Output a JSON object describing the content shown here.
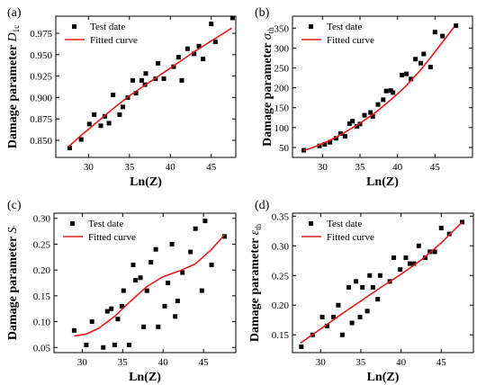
{
  "chart_data": [
    {
      "type": "scatter",
      "panel_label": "(a)",
      "xlabel": "Ln(Z)",
      "ylabel": "Damage parameter ",
      "ylabel_symbol": "D",
      "ylabel_subscript": "1c",
      "xlim": [
        26,
        48
      ],
      "ylim": [
        0.83,
        0.995
      ],
      "xticks": [
        30,
        35,
        40,
        45
      ],
      "yticks": [
        0.85,
        0.875,
        0.9,
        0.925,
        0.95,
        0.975
      ],
      "ytick_decimals": 3,
      "legend": [
        "Test date",
        "Fitted curve"
      ],
      "legend_position": "top-left",
      "series": [
        {
          "name": "Test date",
          "x": [
            27.7,
            29.1,
            30.1,
            30.7,
            31.5,
            32.0,
            32.5,
            33.0,
            33.8,
            34.2,
            34.8,
            35.4,
            35.8,
            36.5,
            36.9,
            37.0,
            38.2,
            38.5,
            39.2,
            40.4,
            41.0,
            41.4,
            42.1,
            42.9,
            43.5,
            44.0,
            45.0,
            45.5,
            47.6
          ],
          "y": [
            0.841,
            0.851,
            0.869,
            0.88,
            0.867,
            0.878,
            0.87,
            0.903,
            0.88,
            0.889,
            0.9,
            0.92,
            0.905,
            0.92,
            0.915,
            0.928,
            0.922,
            0.94,
            0.922,
            0.936,
            0.947,
            0.92,
            0.957,
            0.951,
            0.96,
            0.945,
            0.986,
            0.965,
            0.993
          ]
        },
        {
          "name": "Fitted curve",
          "x": [
            27.5,
            29,
            31,
            33,
            35,
            37,
            39,
            41,
            43,
            45,
            47.5
          ],
          "y": [
            0.842,
            0.855,
            0.871,
            0.887,
            0.902,
            0.915,
            0.928,
            0.941,
            0.954,
            0.966,
            0.981
          ]
        }
      ]
    },
    {
      "type": "scatter",
      "panel_label": "(b)",
      "xlabel": "Ln(Z)",
      "ylabel": "Damage parameter ",
      "ylabel_symbol": "σ",
      "ylabel_subscript": "th",
      "xlim": [
        26,
        50
      ],
      "ylim": [
        25,
        380
      ],
      "xticks": [
        30,
        35,
        40,
        45
      ],
      "yticks": [
        50,
        100,
        150,
        200,
        250,
        300,
        350
      ],
      "ytick_decimals": 0,
      "legend": [
        "Test date",
        "Fitted curve"
      ],
      "legend_position": "top-left",
      "series": [
        {
          "name": "Test date",
          "x": [
            27.5,
            29.6,
            30.3,
            31.0,
            31.8,
            32.4,
            33.0,
            33.6,
            34.0,
            34.6,
            35.0,
            35.6,
            36.4,
            36.7,
            37.4,
            38.1,
            38.5,
            39.1,
            39.4,
            40.6,
            41.2,
            41.8,
            42.4,
            43.1,
            43.5,
            44.4,
            45.0,
            46.0,
            47.8
          ],
          "y": [
            43,
            54,
            58,
            63,
            73,
            85,
            78,
            110,
            116,
            103,
            109,
            131,
            138,
            128,
            158,
            170,
            192,
            193,
            188,
            232,
            235,
            222,
            272,
            262,
            285,
            252,
            340,
            330,
            356
          ]
        },
        {
          "name": "Fitted curve",
          "x": [
            27.5,
            29,
            31,
            33,
            35,
            37,
            39,
            41,
            43,
            45,
            47.5
          ],
          "y": [
            42,
            52,
            68,
            88,
            111,
            137,
            168,
            202,
            243,
            290,
            352
          ]
        }
      ]
    },
    {
      "type": "scatter",
      "panel_label": "(c)",
      "xlabel": "Ln(Z)",
      "ylabel": "Damage parameter ",
      "ylabel_symbol": "S",
      "ylabel_subscript": "'",
      "xlim": [
        26.5,
        49
      ],
      "ylim": [
        0.04,
        0.31
      ],
      "xticks": [
        30,
        35,
        40,
        45
      ],
      "yticks": [
        0.05,
        0.1,
        0.15,
        0.2,
        0.25,
        0.3
      ],
      "ytick_decimals": 2,
      "legend": [
        "Test date",
        "Fitted curve"
      ],
      "legend_position": "top-left",
      "series": [
        {
          "name": "Test date",
          "x": [
            29.0,
            30.5,
            31.2,
            32.6,
            33.1,
            33.6,
            34.0,
            34.4,
            34.9,
            35.1,
            35.8,
            36.3,
            36.6,
            37.2,
            37.6,
            38.0,
            38.5,
            39.1,
            39.4,
            40.2,
            40.6,
            41.1,
            41.5,
            41.8,
            42.4,
            43.4,
            44.0,
            44.8,
            45.2,
            46.0,
            47.6
          ],
          "y": [
            0.083,
            0.055,
            0.1,
            0.05,
            0.12,
            0.125,
            0.055,
            0.105,
            0.13,
            0.16,
            0.055,
            0.21,
            0.18,
            0.185,
            0.09,
            0.16,
            0.215,
            0.24,
            0.09,
            0.13,
            0.175,
            0.25,
            0.11,
            0.14,
            0.195,
            0.235,
            0.28,
            0.16,
            0.295,
            0.21,
            0.265
          ]
        },
        {
          "name": "Fitted curve",
          "x": [
            29,
            30.5,
            32,
            34,
            36,
            38,
            40,
            42,
            44,
            46,
            47.6
          ],
          "y": [
            0.072,
            0.076,
            0.087,
            0.11,
            0.14,
            0.168,
            0.187,
            0.198,
            0.212,
            0.24,
            0.268
          ]
        }
      ]
    },
    {
      "type": "scatter",
      "panel_label": "(d)",
      "xlabel": "Ln(Z)",
      "ylabel": "Damage parameter ",
      "ylabel_symbol": "ε",
      "ylabel_subscript": "th",
      "xlim": [
        26.5,
        49
      ],
      "ylim": [
        0.12,
        0.355
      ],
      "xticks": [
        30,
        35,
        40,
        45
      ],
      "yticks": [
        0.15,
        0.2,
        0.25,
        0.3,
        0.35
      ],
      "ytick_decimals": 2,
      "legend": [
        "Test date",
        "Fitted curve"
      ],
      "legend_position": "top-left",
      "series": [
        {
          "name": "Test date",
          "x": [
            27.6,
            29.0,
            30.2,
            30.8,
            31.6,
            32.2,
            32.7,
            33.5,
            33.9,
            34.4,
            34.9,
            35.2,
            35.8,
            36.1,
            36.5,
            37.1,
            37.4,
            38.6,
            39.1,
            39.9,
            40.6,
            41.1,
            41.6,
            42.2,
            43.0,
            43.6,
            44.2,
            45.0,
            46.0,
            47.6
          ],
          "y": [
            0.13,
            0.15,
            0.18,
            0.165,
            0.18,
            0.2,
            0.15,
            0.23,
            0.17,
            0.24,
            0.18,
            0.23,
            0.19,
            0.25,
            0.23,
            0.21,
            0.25,
            0.24,
            0.28,
            0.26,
            0.28,
            0.27,
            0.27,
            0.3,
            0.28,
            0.29,
            0.29,
            0.33,
            0.32,
            0.34
          ]
        },
        {
          "name": "Fitted curve",
          "x": [
            27.5,
            30,
            32.5,
            35,
            37.5,
            40,
            42.5,
            45,
            47.6
          ],
          "y": [
            0.136,
            0.16,
            0.184,
            0.207,
            0.23,
            0.252,
            0.276,
            0.305,
            0.34
          ]
        }
      ]
    }
  ]
}
